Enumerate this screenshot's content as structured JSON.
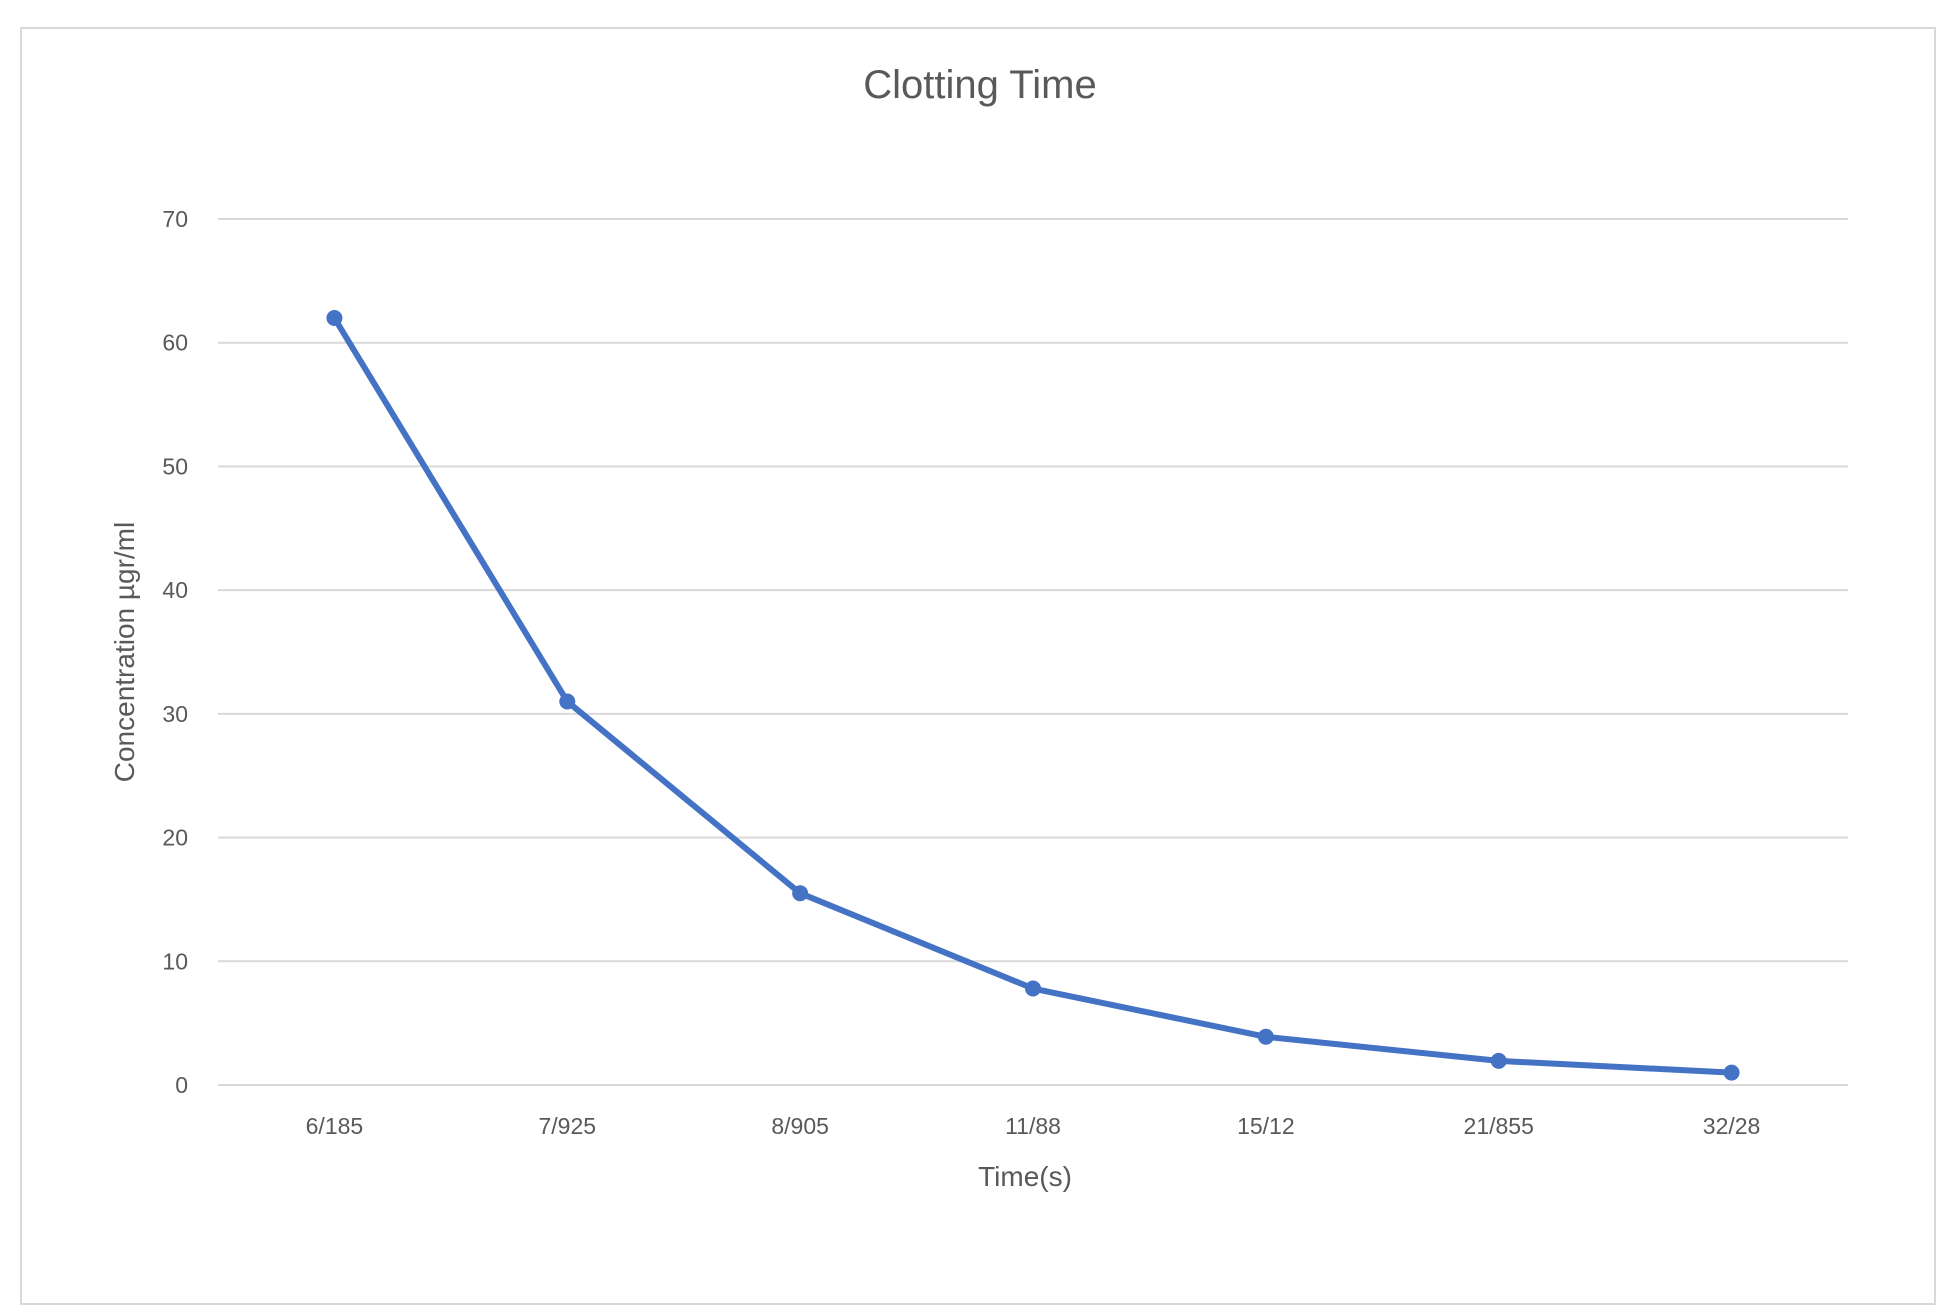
{
  "chart_data": {
    "type": "line",
    "title": "Clotting Time",
    "xlabel": "Time(s)",
    "ylabel": "Concentration µgr/ml",
    "categories": [
      "6/185",
      "7/925",
      "8/905",
      "11/88",
      "15/12",
      "21/855",
      "32/28"
    ],
    "series": [
      {
        "values": [
          62,
          31,
          15.5,
          7.8,
          3.9,
          1.95,
          1.0
        ]
      }
    ],
    "ylim": [
      0,
      70
    ],
    "yticks": [
      "0",
      "10",
      "20",
      "30",
      "40",
      "50",
      "60",
      "70"
    ],
    "grid": true,
    "legend": "none",
    "colors": {
      "line": "#4472C4",
      "grid": "#d9d9d9",
      "text": "#595959"
    }
  }
}
